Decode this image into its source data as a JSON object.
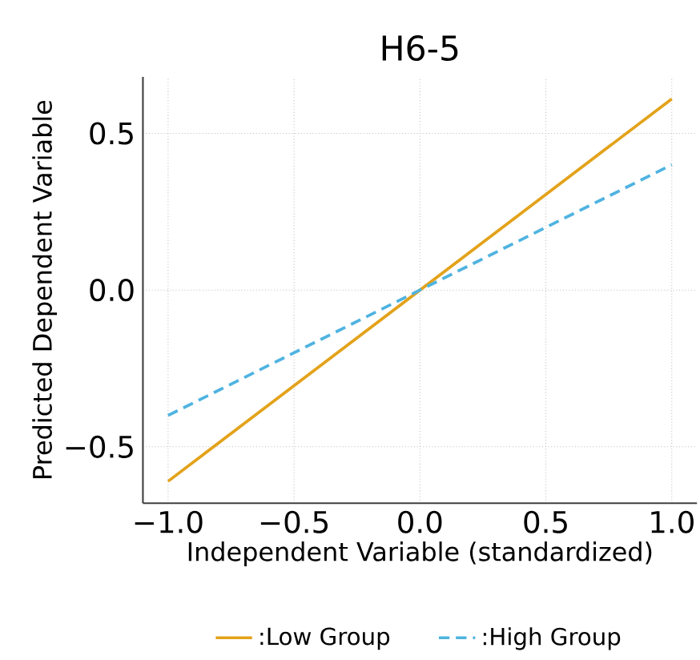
{
  "chart_data": {
    "type": "line",
    "title": "H6-5",
    "xlabel": "Independent Variable (standardized)",
    "ylabel": "Predicted Dependent Variable",
    "x": [
      -1.0,
      1.0
    ],
    "series": [
      {
        "name": ":Low Group",
        "color": "#e3a21a",
        "values": [
          -0.61,
          0.61
        ],
        "line_style": "solid"
      },
      {
        "name": ":High Group",
        "color": "#4fb3e0",
        "values": [
          -0.4,
          0.4
        ],
        "line_style": "dashed"
      }
    ],
    "xlim": [
      -1.1,
      1.1
    ],
    "ylim": [
      -0.68,
      0.68
    ],
    "xticks": [
      {
        "value": -1.0,
        "label": "−1.0"
      },
      {
        "value": -0.5,
        "label": "−0.5"
      },
      {
        "value": 0.0,
        "label": "0.0"
      },
      {
        "value": 0.5,
        "label": "0.5"
      },
      {
        "value": 1.0,
        "label": "1.0"
      }
    ],
    "yticks": [
      {
        "value": -0.5,
        "label": "−0.5"
      },
      {
        "value": 0.0,
        "label": "0.0"
      },
      {
        "value": 0.5,
        "label": "0.5"
      }
    ],
    "grid": true,
    "legend": "bottom",
    "marker": "none"
  }
}
